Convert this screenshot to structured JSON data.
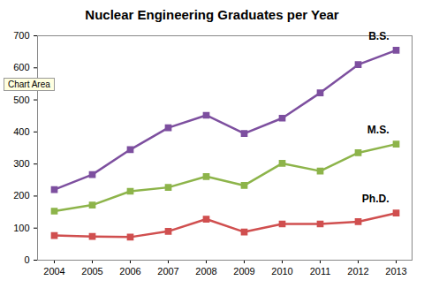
{
  "chart_data": {
    "type": "line",
    "title": "Nuclear Engineering Graduates per Year",
    "categories": [
      "2004",
      "2005",
      "2006",
      "2007",
      "2008",
      "2009",
      "2010",
      "2011",
      "2012",
      "2013"
    ],
    "series": [
      {
        "name": "B.S.",
        "color": "#7d4f9f",
        "marker": "square",
        "values": [
          220,
          267,
          345,
          413,
          452,
          395,
          443,
          522,
          610,
          655
        ]
      },
      {
        "name": "M.S.",
        "color": "#8db44a",
        "marker": "square",
        "values": [
          153,
          172,
          215,
          227,
          261,
          233,
          302,
          278,
          335,
          362
        ]
      },
      {
        "name": "Ph.D.",
        "color": "#d04f4f",
        "marker": "square",
        "values": [
          77,
          74,
          72,
          90,
          128,
          88,
          113,
          113,
          120,
          147
        ]
      }
    ],
    "ylim": [
      0,
      700
    ],
    "yticks": [
      0,
      100,
      200,
      300,
      400,
      500,
      600,
      700
    ],
    "grid": false,
    "annotations": [
      "Chart Area"
    ]
  }
}
